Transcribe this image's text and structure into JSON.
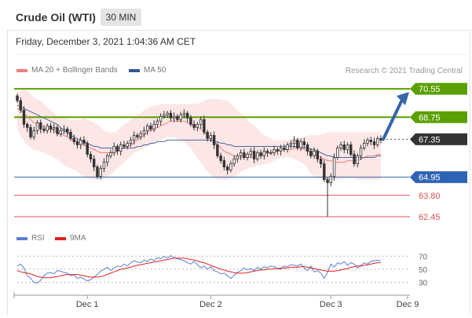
{
  "header": {
    "title": "Crude Oil (WTI)",
    "timeframe": "30 MIN"
  },
  "date_line": "Friday, December 3, 2021 1:04:36 AM CET",
  "legend": {
    "ma20": "MA 20 + Bollinger Bands",
    "ma50": "MA 50",
    "credit": "Research © 2021 Trading Central",
    "rsi": "RSI",
    "ma9": "9MA"
  },
  "colors": {
    "green_level": "#5aa000",
    "blue_level": "#2f64b4",
    "red_level": "#e05050",
    "current_price": "#333333",
    "ma20": "#f08080",
    "ma50": "#4a6a9a",
    "bollinger_fill": "#fde6e6",
    "rsi": "#5b7fd6",
    "ma9": "#e02020",
    "arrow": "#3566aa"
  },
  "chart_data": [
    {
      "type": "candlestick",
      "ylim": [
        62.0,
        71.2
      ],
      "x_ticks": [
        "Dec 1",
        "Dec 2",
        "Dec 3",
        "Dec 9"
      ],
      "x_tick_index": [
        21,
        58,
        94,
        117
      ],
      "levels": [
        {
          "value": 70.55,
          "label": "70.55",
          "style": "green"
        },
        {
          "value": 68.75,
          "label": "68.75",
          "style": "green"
        },
        {
          "value": 67.35,
          "label": "67.35",
          "style": "current"
        },
        {
          "value": 64.95,
          "label": "64.95",
          "style": "blue"
        },
        {
          "value": 63.8,
          "label": "63.80",
          "style": "red"
        },
        {
          "value": 62.45,
          "label": "62.45",
          "style": "red"
        }
      ],
      "forecast_arrow": {
        "from": 67.35,
        "to": 70.2
      },
      "close": [
        69.8,
        69.2,
        68.3,
        68.1,
        67.5,
        67.9,
        68.4,
        68.0,
        67.9,
        68.2,
        68.0,
        68.1,
        67.7,
        67.9,
        68.0,
        67.8,
        67.4,
        67.2,
        67.0,
        67.3,
        67.1,
        66.4,
        66.1,
        65.6,
        65.0,
        65.5,
        65.9,
        66.3,
        66.5,
        66.9,
        66.6,
        67.0,
        66.9,
        67.1,
        67.3,
        67.6,
        67.5,
        67.7,
        67.9,
        68.2,
        68.0,
        68.3,
        68.5,
        68.8,
        68.9,
        69.0,
        68.7,
        68.8,
        68.6,
        68.9,
        69.0,
        68.7,
        68.3,
        68.1,
        68.3,
        68.6,
        67.8,
        67.4,
        67.6,
        67.0,
        66.3,
        66.0,
        65.6,
        65.4,
        65.8,
        66.1,
        66.3,
        66.5,
        66.2,
        66.4,
        66.6,
        66.1,
        66.5,
        66.3,
        66.6,
        66.5,
        66.5,
        66.7,
        66.6,
        66.8,
        66.7,
        67.0,
        67.1,
        67.3,
        66.8,
        67.2,
        67.0,
        66.6,
        66.3,
        66.6,
        66.1,
        65.8,
        64.8,
        64.6,
        65.0,
        66.2,
        66.8,
        67.0,
        66.7,
        67.0,
        66.4,
        65.8,
        66.3,
        66.8,
        67.1,
        67.3,
        67.2,
        67.0,
        67.4,
        67.3
      ],
      "bollinger_upper": [
        70.3,
        70.4,
        70.5,
        70.4,
        70.2,
        70.0,
        69.9,
        69.8,
        69.6,
        69.4,
        69.2,
        69.0,
        68.8,
        68.7,
        68.7,
        68.6,
        68.6,
        68.6,
        68.6,
        68.6,
        68.7,
        68.6,
        68.5,
        68.4,
        68.3,
        68.1,
        67.9,
        67.8,
        67.8,
        67.8,
        67.9,
        68.1,
        68.3,
        68.4,
        68.6,
        68.7,
        68.9,
        69.0,
        69.2,
        69.3,
        69.4,
        69.5,
        69.5,
        69.6,
        69.6,
        69.6,
        69.6,
        69.6,
        69.6,
        69.6,
        69.6,
        69.6,
        69.6,
        69.6,
        69.6,
        69.7,
        69.8,
        69.9,
        69.9,
        69.9,
        69.9,
        69.9,
        69.8,
        69.8,
        69.6,
        69.4,
        69.2,
        69.0,
        68.8,
        68.6,
        68.4,
        68.2,
        68.0,
        67.8,
        67.6,
        67.5,
        67.4,
        67.3,
        67.3,
        67.3,
        67.3,
        67.3,
        67.3,
        67.4,
        67.4,
        67.4,
        67.5,
        67.6,
        67.6,
        67.6,
        67.6,
        67.7,
        67.7,
        67.8,
        67.8,
        67.8,
        67.8,
        67.8,
        67.8,
        67.8,
        67.8,
        67.8,
        67.8,
        67.8,
        67.8,
        67.8,
        67.8,
        67.8,
        67.8,
        67.8
      ],
      "bollinger_lower": [
        68.0,
        67.6,
        67.3,
        67.0,
        66.8,
        66.7,
        66.6,
        66.6,
        66.5,
        66.4,
        66.3,
        66.2,
        66.1,
        65.9,
        65.7,
        65.6,
        65.5,
        65.4,
        65.3,
        65.1,
        65.0,
        64.9,
        64.8,
        64.8,
        64.8,
        64.8,
        64.9,
        65.0,
        65.1,
        65.3,
        65.5,
        65.7,
        65.9,
        66.1,
        66.3,
        66.5,
        66.6,
        66.7,
        66.8,
        66.9,
        67.0,
        67.1,
        67.2,
        67.3,
        67.4,
        67.5,
        67.5,
        67.5,
        67.4,
        67.3,
        67.2,
        67.0,
        66.8,
        66.5,
        66.2,
        65.9,
        65.6,
        65.3,
        65.1,
        64.9,
        64.8,
        64.8,
        64.8,
        64.8,
        64.9,
        65.0,
        65.1,
        65.3,
        65.4,
        65.5,
        65.6,
        65.6,
        65.7,
        65.7,
        65.8,
        65.8,
        65.9,
        66.0,
        66.1,
        66.2,
        66.2,
        66.2,
        66.2,
        66.1,
        66.0,
        65.9,
        65.8,
        65.5,
        65.2,
        65.0,
        64.9,
        64.8,
        64.8,
        64.8,
        64.8,
        64.8,
        64.8,
        64.8,
        64.9,
        64.9,
        64.9,
        64.9,
        64.8,
        64.8,
        64.8,
        64.8,
        64.8,
        64.8,
        64.8,
        64.8
      ],
      "ma20": [
        69.3,
        69.2,
        69.0,
        68.8,
        68.6,
        68.4,
        68.3,
        68.2,
        68.1,
        68.0,
        68.0,
        67.9,
        67.8,
        67.7,
        67.6,
        67.5,
        67.4,
        67.3,
        67.2,
        67.1,
        67.0,
        66.9,
        66.8,
        66.7,
        66.6,
        66.5,
        66.5,
        66.5,
        66.5,
        66.5,
        66.6,
        66.7,
        66.8,
        66.9,
        67.0,
        67.1,
        67.3,
        67.5,
        67.6,
        67.8,
        67.9,
        68.0,
        68.1,
        68.2,
        68.3,
        68.4,
        68.5,
        68.5,
        68.5,
        68.5,
        68.5,
        68.4,
        68.3,
        68.2,
        68.1,
        68.0,
        67.8,
        67.6,
        67.4,
        67.2,
        67.0,
        66.8,
        66.6,
        66.5,
        66.4,
        66.3,
        66.2,
        66.2,
        66.2,
        66.2,
        66.2,
        66.3,
        66.3,
        66.4,
        66.4,
        66.5,
        66.5,
        66.6,
        66.6,
        66.7,
        66.7,
        66.7,
        66.7,
        66.8,
        66.8,
        66.8,
        66.7,
        66.6,
        66.5,
        66.4,
        66.3,
        66.2,
        66.1,
        66.0,
        66.0,
        65.9,
        65.9,
        65.9,
        65.9,
        66.0,
        66.0,
        66.0,
        66.0,
        66.1,
        66.2,
        66.3,
        66.3,
        66.3,
        66.4,
        66.4
      ],
      "ma50": [
        69.5,
        69.4,
        69.3,
        69.2,
        69.1,
        69.0,
        68.9,
        68.8,
        68.7,
        68.6,
        68.5,
        68.4,
        68.3,
        68.1,
        67.9,
        67.8,
        67.6,
        67.5,
        67.4,
        67.3,
        67.2,
        67.1,
        67.0,
        66.9,
        66.9,
        66.8,
        66.8,
        66.8,
        66.8,
        66.8,
        66.8,
        66.8,
        66.8,
        66.8,
        66.8,
        66.8,
        66.9,
        66.9,
        67.0,
        67.0,
        67.1,
        67.1,
        67.2,
        67.2,
        67.2,
        67.3,
        67.3,
        67.3,
        67.3,
        67.3,
        67.3,
        67.3,
        67.3,
        67.3,
        67.3,
        67.3,
        67.3,
        67.3,
        67.3,
        67.2,
        67.2,
        67.1,
        67.1,
        67.0,
        67.0,
        66.9,
        66.9,
        66.9,
        66.9,
        66.9,
        66.9,
        66.9,
        66.9,
        66.9,
        66.9,
        66.9,
        66.9,
        66.9,
        66.9,
        66.9,
        66.9,
        66.9,
        66.9,
        66.9,
        66.9,
        66.9,
        66.8,
        66.8,
        66.7,
        66.7,
        66.6,
        66.5,
        66.4,
        66.3,
        66.3,
        66.2,
        66.2,
        66.2,
        66.2,
        66.2,
        66.2,
        66.2,
        66.2,
        66.2,
        66.2,
        66.2,
        66.2,
        66.2,
        66.3,
        66.3
      ]
    },
    {
      "type": "line",
      "ylim": [
        15,
        80
      ],
      "y_ticks": [
        70,
        50,
        30
      ],
      "rsi": [
        55,
        58,
        52,
        40,
        36,
        30,
        29,
        33,
        40,
        44,
        45,
        43,
        48,
        47,
        45,
        44,
        40,
        42,
        36,
        38,
        35,
        32,
        34,
        38,
        42,
        47,
        50,
        53,
        48,
        52,
        55,
        54,
        58,
        55,
        60,
        63,
        61,
        60,
        64,
        62,
        66,
        63,
        68,
        66,
        70,
        67,
        71,
        68,
        66,
        65,
        63,
        60,
        58,
        62,
        57,
        52,
        55,
        50,
        54,
        48,
        46,
        43,
        44,
        40,
        36,
        41,
        45,
        48,
        52,
        49,
        51,
        48,
        53,
        50,
        54,
        52,
        55,
        54,
        51,
        50,
        55,
        54,
        57,
        56,
        55,
        58,
        52,
        48,
        55,
        46,
        48,
        44,
        36,
        45,
        58,
        53,
        60,
        58,
        62,
        56,
        60,
        58,
        52,
        56,
        60,
        58,
        62,
        63,
        64,
        63
      ],
      "ma9": [
        48,
        46,
        45,
        44,
        43,
        41,
        39,
        38,
        37,
        37,
        37,
        38,
        39,
        40,
        41,
        42,
        42,
        42,
        42,
        41,
        40,
        39,
        38,
        38,
        38,
        39,
        40,
        42,
        44,
        46,
        48,
        50,
        51,
        52,
        53,
        55,
        56,
        57,
        58,
        59,
        60,
        61,
        62,
        63,
        64,
        65,
        66,
        67,
        67,
        67,
        67,
        66,
        65,
        64,
        63,
        61,
        60,
        58,
        56,
        54,
        52,
        50,
        49,
        47,
        46,
        45,
        44,
        44,
        44,
        45,
        46,
        47,
        48,
        49,
        49,
        50,
        50,
        51,
        51,
        52,
        52,
        52,
        53,
        53,
        53,
        54,
        54,
        53,
        52,
        51,
        50,
        49,
        48,
        47,
        47,
        47,
        48,
        49,
        50,
        51,
        53,
        54,
        55,
        55,
        56,
        57,
        58,
        59,
        60,
        60
      ]
    }
  ]
}
